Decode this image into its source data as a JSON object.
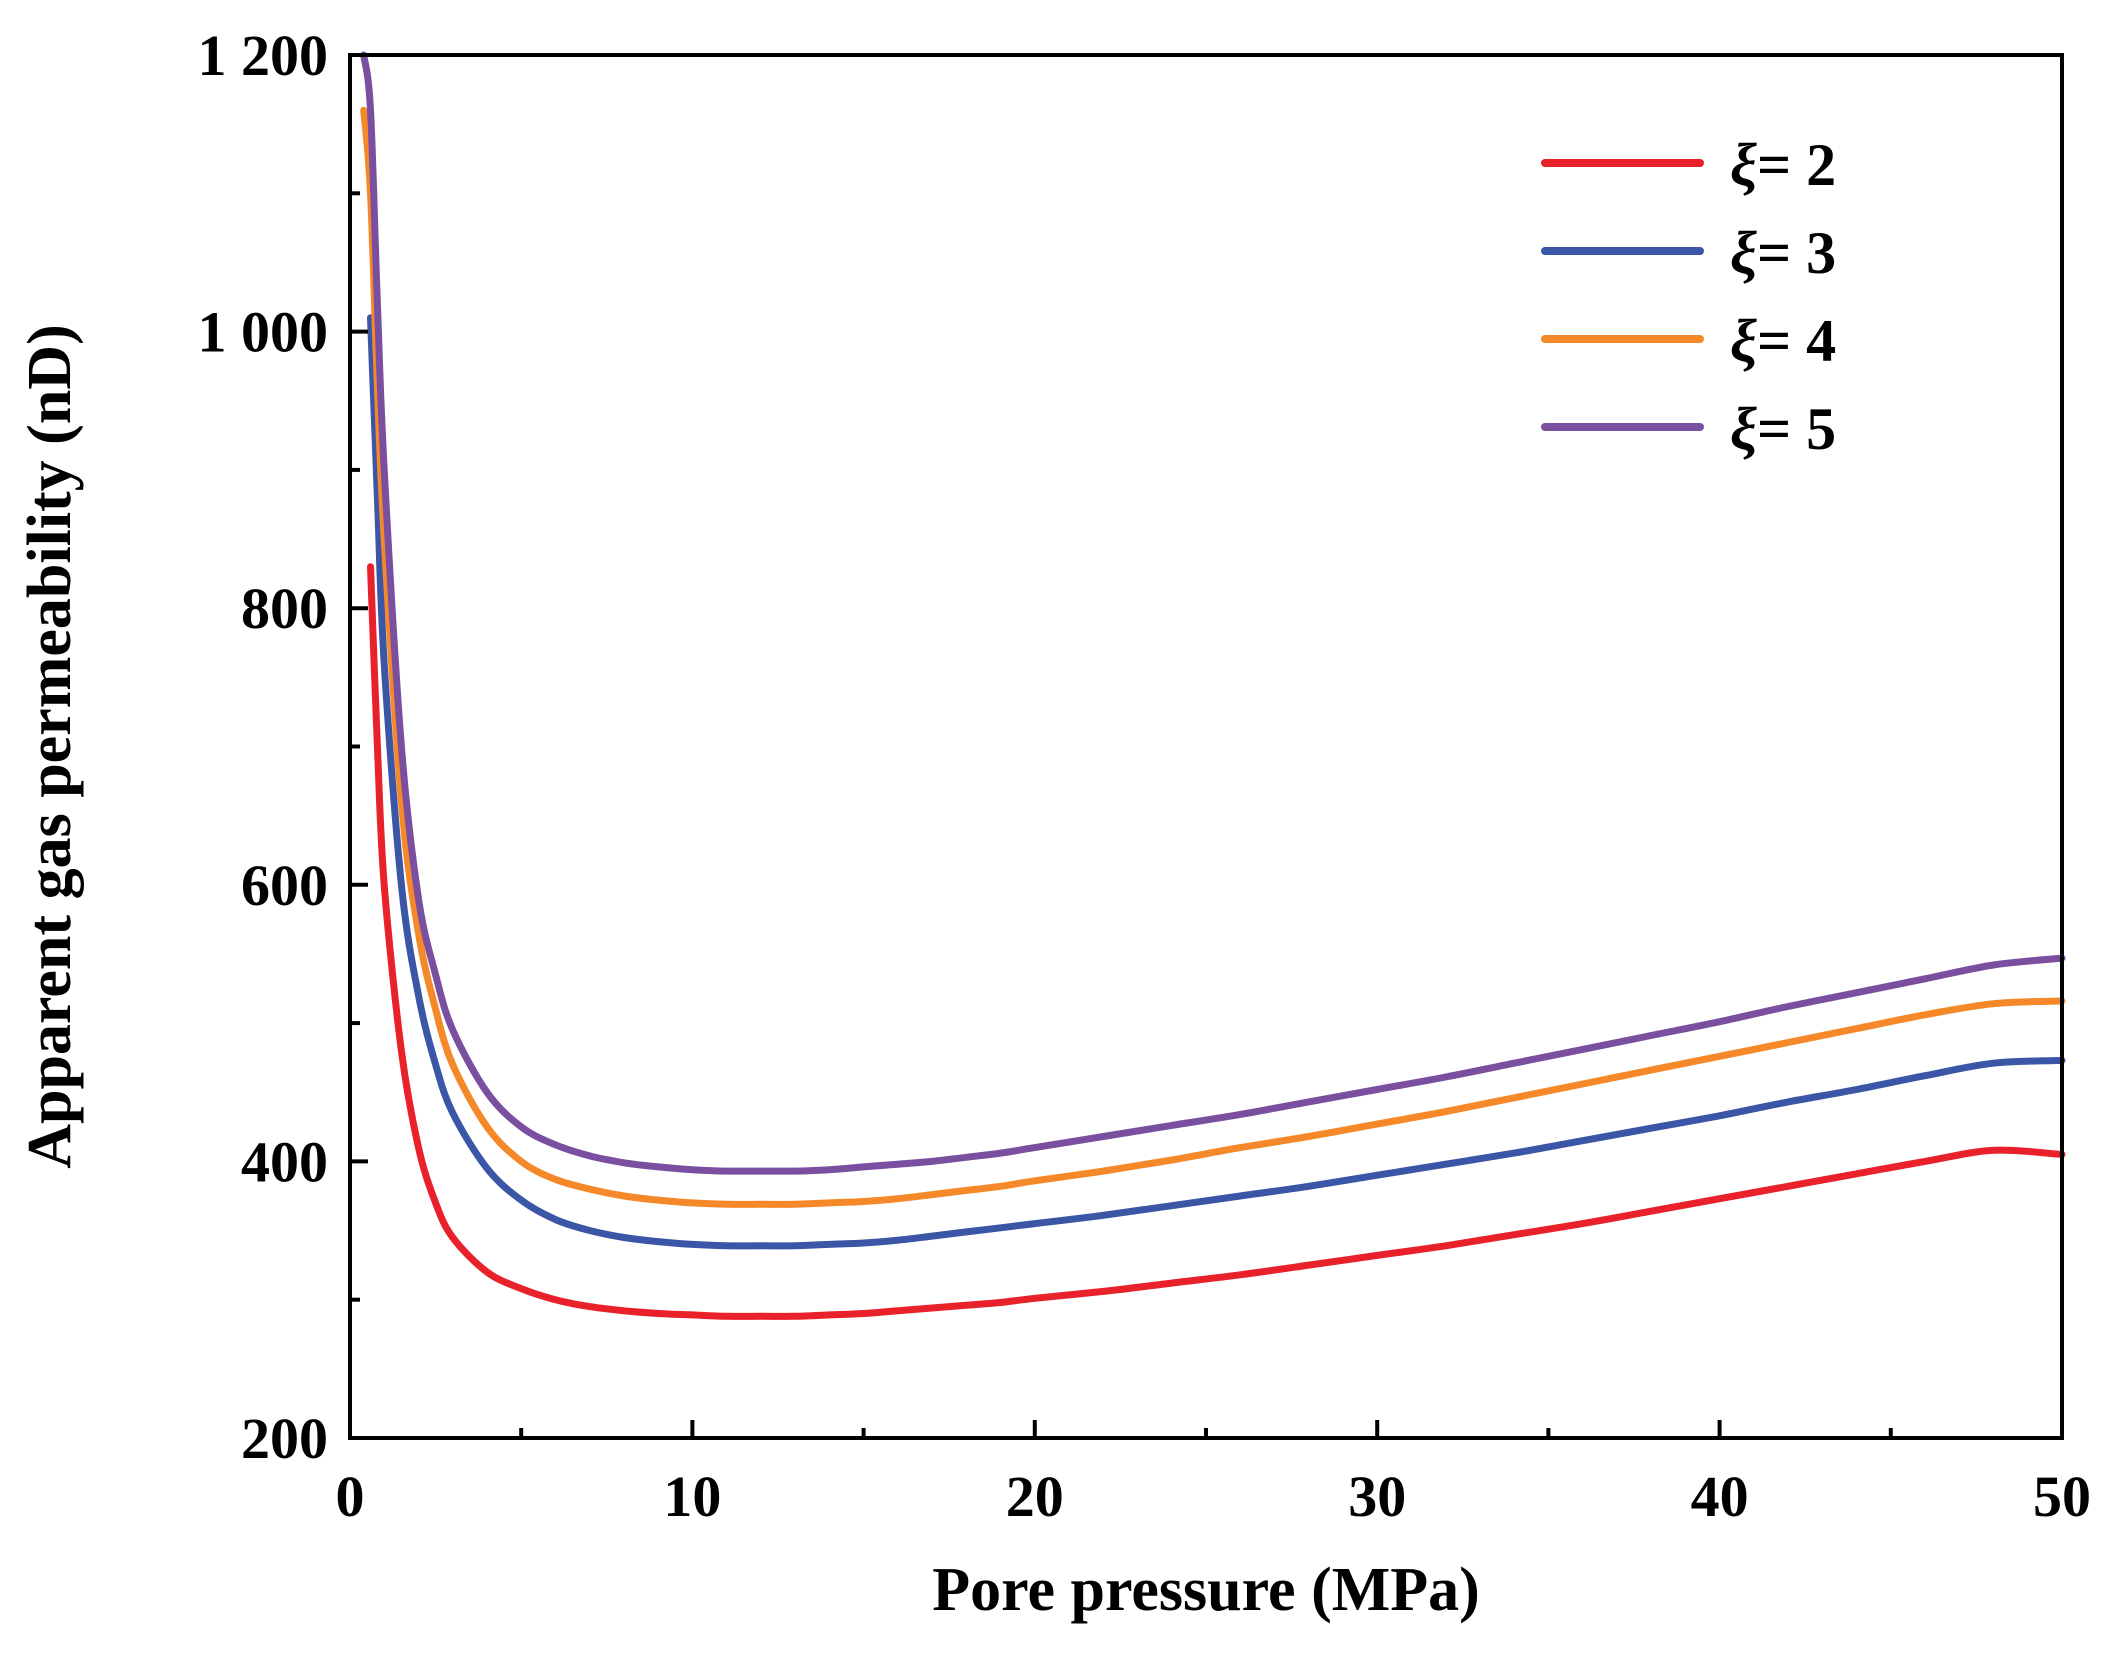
{
  "chart_data": {
    "type": "line",
    "title": "",
    "xlabel": "Pore pressure (MPa)",
    "ylabel": "Apparent gas permeability (nD)",
    "xlim": [
      0,
      50
    ],
    "ylim": [
      200,
      1200
    ],
    "xticks": [
      0,
      10,
      20,
      30,
      40,
      50
    ],
    "xtick_labels": [
      "0",
      "10",
      "20",
      "30",
      "40",
      "50"
    ],
    "yticks": [
      200,
      400,
      600,
      800,
      1000,
      1200
    ],
    "ytick_labels": [
      "200",
      "400",
      "600",
      "800",
      "1 000",
      "1 200"
    ],
    "grid": false,
    "legend_position": "top-right",
    "x": [
      0.4,
      0.6,
      0.8,
      1,
      1.5,
      2,
      2.5,
      3,
      4,
      5,
      6,
      7,
      8,
      9,
      10,
      11,
      12,
      13,
      14,
      15,
      16,
      17,
      18,
      19,
      20,
      22,
      24,
      26,
      28,
      30,
      32,
      34,
      36,
      38,
      40,
      42,
      44,
      46,
      48,
      50
    ],
    "series": [
      {
        "name": "ξ= 2",
        "symbol": "ξ",
        "value_text": "= 2",
        "color": "#e8212b",
        "values": [
          null,
          830,
          700,
          600,
          480,
          410,
          370,
          345,
          320,
          308,
          300,
          295,
          292,
          290,
          289,
          288,
          288,
          288,
          289,
          290,
          292,
          294,
          296,
          298,
          301,
          306,
          312,
          318,
          325,
          332,
          339,
          347,
          355,
          364,
          373,
          382,
          391,
          400,
          408,
          405
        ]
      },
      {
        "name": "ξ= 3",
        "symbol": "ξ",
        "value_text": "= 3",
        "color": "#3b56a6",
        "values": [
          null,
          1010,
          880,
          760,
          600,
          520,
          470,
          435,
          395,
          372,
          358,
          350,
          345,
          342,
          340,
          339,
          339,
          339,
          340,
          341,
          343,
          346,
          349,
          352,
          355,
          361,
          368,
          375,
          382,
          390,
          398,
          406,
          415,
          424,
          433,
          443,
          452,
          462,
          471,
          473
        ]
      },
      {
        "name": "ξ= 4",
        "symbol": "ξ",
        "value_text": "= 4",
        "color": "#f5892a",
        "values": [
          1160,
          1100,
          960,
          850,
          660,
          565,
          510,
          470,
          425,
          400,
          387,
          380,
          375,
          372,
          370,
          369,
          369,
          369,
          370,
          371,
          373,
          376,
          379,
          382,
          386,
          393,
          401,
          410,
          418,
          427,
          436,
          446,
          456,
          466,
          476,
          486,
          496,
          506,
          514,
          516
        ]
      },
      {
        "name": "ξ= 5",
        "symbol": "ξ",
        "value_text": "= 5",
        "color": "#7b4fa0",
        "values": [
          1200,
          1160,
          1020,
          900,
          700,
          590,
          535,
          495,
          450,
          425,
          412,
          404,
          399,
          396,
          394,
          393,
          393,
          393,
          394,
          396,
          398,
          400,
          403,
          406,
          410,
          418,
          426,
          434,
          443,
          452,
          461,
          471,
          481,
          491,
          501,
          512,
          522,
          532,
          542,
          547
        ]
      }
    ]
  }
}
